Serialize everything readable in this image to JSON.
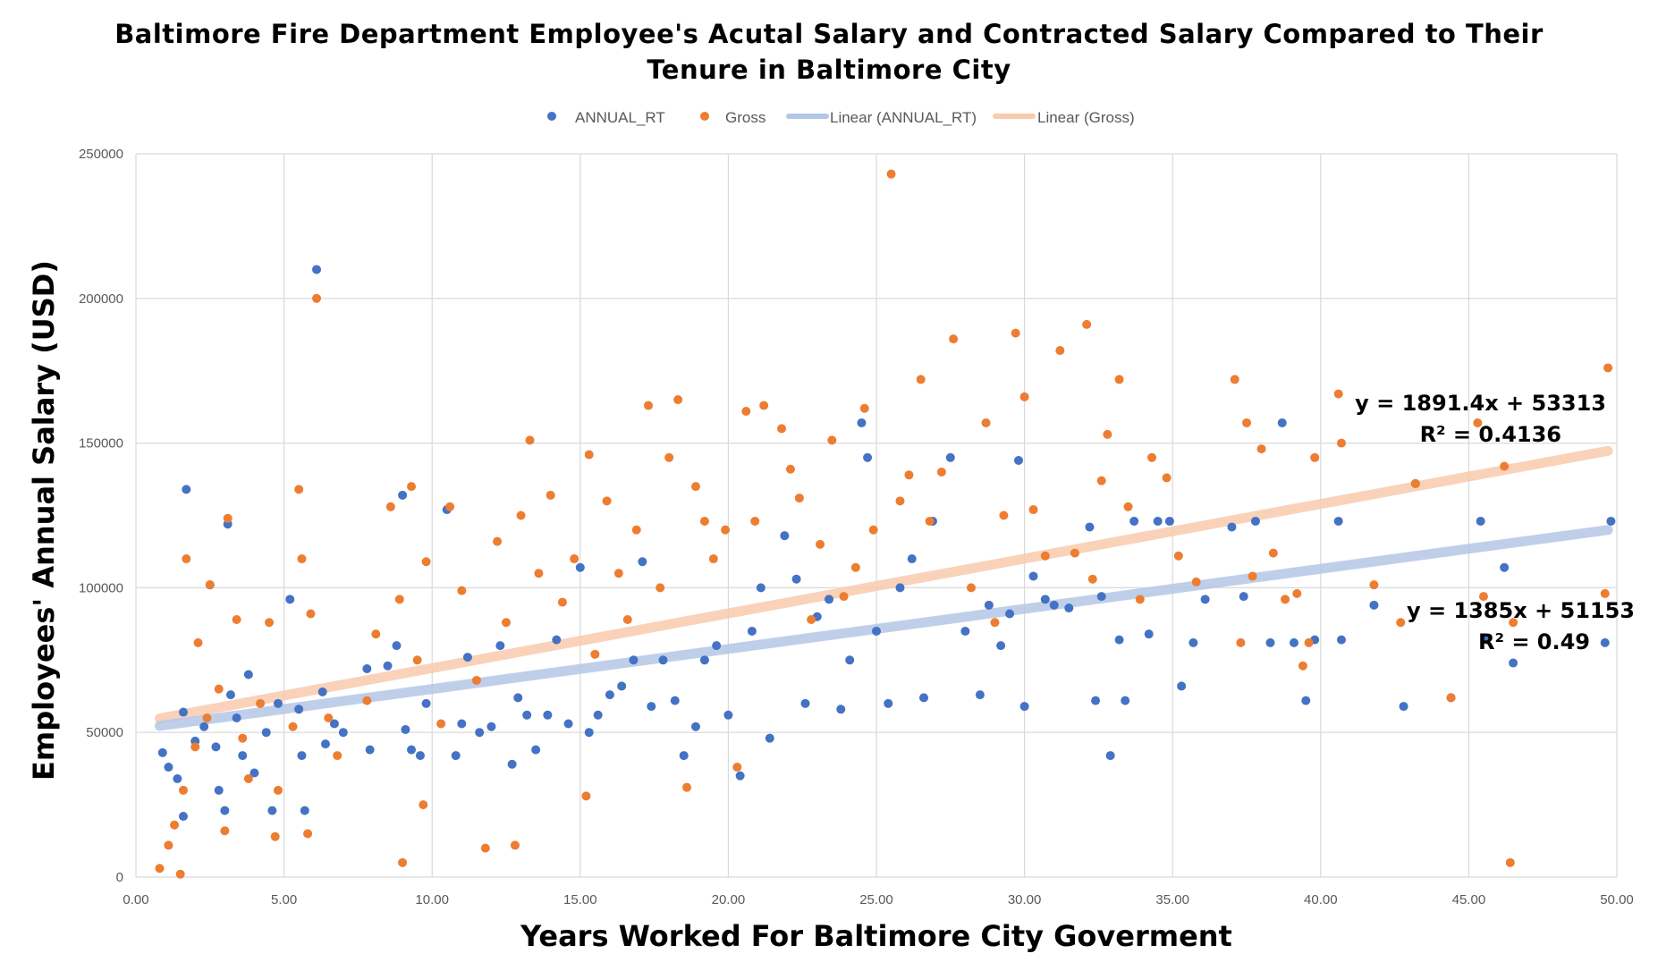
{
  "chart_data": {
    "type": "scatter",
    "title": "Baltimore Fire Department Employee's Acutal Salary and Contracted Salary Compared to Their",
    "title_line2": "Tenure in Baltimore City",
    "xlabel": "Years Worked For Baltimore City Goverment",
    "ylabel": "Employees' Annual Salary (USD)",
    "xlim": [
      0,
      50
    ],
    "ylim": [
      0,
      250000
    ],
    "x_ticks": [
      "0.00",
      "5.00",
      "10.00",
      "15.00",
      "20.00",
      "25.00",
      "30.00",
      "35.00",
      "40.00",
      "45.00",
      "50.00"
    ],
    "y_ticks": [
      "0",
      "50000",
      "100000",
      "150000",
      "200000",
      "250000"
    ],
    "grid": true,
    "legend_position": "top",
    "legend": [
      {
        "label": "ANNUAL_RT",
        "kind": "marker",
        "color": "#4472C4"
      },
      {
        "label": "Gross",
        "kind": "marker",
        "color": "#ED7D31"
      },
      {
        "label": "Linear (ANNUAL_RT)",
        "kind": "line",
        "color": "#B4C7E7"
      },
      {
        "label": "Linear (Gross)",
        "kind": "line",
        "color": "#F8CBAD"
      }
    ],
    "trendlines": [
      {
        "series": "Gross",
        "slope": 1891.4,
        "intercept": 53313,
        "x_range": [
          0.8,
          49.7
        ],
        "color": "#F8CBAD",
        "equation": "y = 1891.4x + 53313",
        "r2": "R² = 0.4136"
      },
      {
        "series": "ANNUAL_RT",
        "slope": 1385,
        "intercept": 51153,
        "x_range": [
          0.8,
          49.7
        ],
        "color": "#B4C7E7",
        "equation": "y = 1385x + 51153",
        "r2": "R² = 0.49"
      }
    ],
    "series": [
      {
        "name": "ANNUAL_RT",
        "color": "#4472C4",
        "points": [
          [
            0.9,
            43000
          ],
          [
            1.1,
            38000
          ],
          [
            1.4,
            34000
          ],
          [
            1.6,
            57000
          ],
          [
            1.7,
            134000
          ],
          [
            1.6,
            21000
          ],
          [
            2.0,
            47000
          ],
          [
            2.3,
            52000
          ],
          [
            2.5,
            101000
          ],
          [
            2.7,
            45000
          ],
          [
            2.8,
            30000
          ],
          [
            3.0,
            23000
          ],
          [
            3.1,
            122000
          ],
          [
            3.2,
            63000
          ],
          [
            3.4,
            55000
          ],
          [
            3.6,
            42000
          ],
          [
            3.8,
            70000
          ],
          [
            4.0,
            36000
          ],
          [
            4.4,
            50000
          ],
          [
            4.6,
            23000
          ],
          [
            4.8,
            60000
          ],
          [
            5.2,
            96000
          ],
          [
            5.5,
            58000
          ],
          [
            5.6,
            42000
          ],
          [
            5.7,
            23000
          ],
          [
            6.1,
            210000
          ],
          [
            6.3,
            64000
          ],
          [
            6.4,
            46000
          ],
          [
            6.7,
            53000
          ],
          [
            7.0,
            50000
          ],
          [
            7.8,
            72000
          ],
          [
            7.9,
            44000
          ],
          [
            8.5,
            73000
          ],
          [
            8.8,
            80000
          ],
          [
            9.0,
            132000
          ],
          [
            9.1,
            51000
          ],
          [
            9.3,
            44000
          ],
          [
            9.6,
            42000
          ],
          [
            9.8,
            60000
          ],
          [
            10.5,
            127000
          ],
          [
            10.8,
            42000
          ],
          [
            11.0,
            53000
          ],
          [
            11.2,
            76000
          ],
          [
            11.6,
            50000
          ],
          [
            12.0,
            52000
          ],
          [
            12.3,
            80000
          ],
          [
            12.7,
            39000
          ],
          [
            12.9,
            62000
          ],
          [
            13.2,
            56000
          ],
          [
            13.5,
            44000
          ],
          [
            13.9,
            56000
          ],
          [
            14.2,
            82000
          ],
          [
            14.6,
            53000
          ],
          [
            15.0,
            107000
          ],
          [
            15.3,
            50000
          ],
          [
            15.6,
            56000
          ],
          [
            16.0,
            63000
          ],
          [
            16.4,
            66000
          ],
          [
            16.8,
            75000
          ],
          [
            17.1,
            109000
          ],
          [
            17.4,
            59000
          ],
          [
            17.8,
            75000
          ],
          [
            18.2,
            61000
          ],
          [
            18.5,
            42000
          ],
          [
            18.9,
            52000
          ],
          [
            19.2,
            75000
          ],
          [
            19.6,
            80000
          ],
          [
            20.0,
            56000
          ],
          [
            20.4,
            35000
          ],
          [
            20.8,
            85000
          ],
          [
            21.1,
            100000
          ],
          [
            21.4,
            48000
          ],
          [
            21.9,
            118000
          ],
          [
            22.3,
            103000
          ],
          [
            22.6,
            60000
          ],
          [
            23.0,
            90000
          ],
          [
            23.4,
            96000
          ],
          [
            23.8,
            58000
          ],
          [
            24.1,
            75000
          ],
          [
            24.5,
            157000
          ],
          [
            24.7,
            145000
          ],
          [
            25.0,
            85000
          ],
          [
            25.4,
            60000
          ],
          [
            25.8,
            100000
          ],
          [
            26.2,
            110000
          ],
          [
            26.6,
            62000
          ],
          [
            26.9,
            123000
          ],
          [
            27.5,
            145000
          ],
          [
            28.0,
            85000
          ],
          [
            28.5,
            63000
          ],
          [
            28.8,
            94000
          ],
          [
            29.2,
            80000
          ],
          [
            29.5,
            91000
          ],
          [
            29.8,
            144000
          ],
          [
            30.0,
            59000
          ],
          [
            30.3,
            104000
          ],
          [
            30.7,
            96000
          ],
          [
            31.0,
            94000
          ],
          [
            31.5,
            93000
          ],
          [
            32.2,
            121000
          ],
          [
            32.4,
            61000
          ],
          [
            32.6,
            97000
          ],
          [
            32.9,
            42000
          ],
          [
            33.2,
            82000
          ],
          [
            33.4,
            61000
          ],
          [
            33.7,
            123000
          ],
          [
            34.2,
            84000
          ],
          [
            34.5,
            123000
          ],
          [
            34.9,
            123000
          ],
          [
            35.3,
            66000
          ],
          [
            35.7,
            81000
          ],
          [
            36.1,
            96000
          ],
          [
            37.0,
            121000
          ],
          [
            37.4,
            97000
          ],
          [
            37.8,
            123000
          ],
          [
            38.3,
            81000
          ],
          [
            38.7,
            157000
          ],
          [
            39.1,
            81000
          ],
          [
            39.5,
            61000
          ],
          [
            39.8,
            82000
          ],
          [
            40.6,
            123000
          ],
          [
            40.7,
            82000
          ],
          [
            41.8,
            94000
          ],
          [
            42.8,
            59000
          ],
          [
            43.2,
            136000
          ],
          [
            44.4,
            62000
          ],
          [
            45.4,
            123000
          ],
          [
            45.6,
            82000
          ],
          [
            46.2,
            107000
          ],
          [
            46.5,
            74000
          ],
          [
            49.8,
            123000
          ],
          [
            49.6,
            81000
          ]
        ]
      },
      {
        "name": "Gross",
        "color": "#ED7D31",
        "points": [
          [
            0.8,
            3000
          ],
          [
            1.1,
            11000
          ],
          [
            1.3,
            18000
          ],
          [
            1.5,
            1000
          ],
          [
            1.6,
            30000
          ],
          [
            1.7,
            110000
          ],
          [
            2.0,
            45000
          ],
          [
            2.1,
            81000
          ],
          [
            2.4,
            55000
          ],
          [
            2.5,
            101000
          ],
          [
            2.8,
            65000
          ],
          [
            3.0,
            16000
          ],
          [
            3.1,
            124000
          ],
          [
            3.4,
            89000
          ],
          [
            3.6,
            48000
          ],
          [
            3.8,
            34000
          ],
          [
            4.2,
            60000
          ],
          [
            4.5,
            88000
          ],
          [
            4.7,
            14000
          ],
          [
            4.8,
            30000
          ],
          [
            5.3,
            52000
          ],
          [
            5.5,
            134000
          ],
          [
            5.6,
            110000
          ],
          [
            5.8,
            15000
          ],
          [
            5.9,
            91000
          ],
          [
            6.1,
            200000
          ],
          [
            6.5,
            55000
          ],
          [
            6.8,
            42000
          ],
          [
            7.8,
            61000
          ],
          [
            8.1,
            84000
          ],
          [
            8.6,
            128000
          ],
          [
            8.9,
            96000
          ],
          [
            9.0,
            5000
          ],
          [
            9.3,
            135000
          ],
          [
            9.5,
            75000
          ],
          [
            9.7,
            25000
          ],
          [
            9.8,
            109000
          ],
          [
            10.3,
            53000
          ],
          [
            10.6,
            128000
          ],
          [
            11.0,
            99000
          ],
          [
            11.5,
            68000
          ],
          [
            11.8,
            10000
          ],
          [
            12.2,
            116000
          ],
          [
            12.5,
            88000
          ],
          [
            12.8,
            11000
          ],
          [
            13.0,
            125000
          ],
          [
            13.3,
            151000
          ],
          [
            13.6,
            105000
          ],
          [
            14.0,
            132000
          ],
          [
            14.4,
            95000
          ],
          [
            14.8,
            110000
          ],
          [
            15.2,
            28000
          ],
          [
            15.3,
            146000
          ],
          [
            15.5,
            77000
          ],
          [
            15.9,
            130000
          ],
          [
            16.3,
            105000
          ],
          [
            16.6,
            89000
          ],
          [
            16.9,
            120000
          ],
          [
            17.3,
            163000
          ],
          [
            17.7,
            100000
          ],
          [
            18.0,
            145000
          ],
          [
            18.3,
            165000
          ],
          [
            18.6,
            31000
          ],
          [
            18.9,
            135000
          ],
          [
            19.2,
            123000
          ],
          [
            19.5,
            110000
          ],
          [
            19.9,
            120000
          ],
          [
            20.3,
            38000
          ],
          [
            20.6,
            161000
          ],
          [
            20.9,
            123000
          ],
          [
            21.2,
            163000
          ],
          [
            21.8,
            155000
          ],
          [
            22.1,
            141000
          ],
          [
            22.4,
            131000
          ],
          [
            22.8,
            89000
          ],
          [
            23.1,
            115000
          ],
          [
            23.5,
            151000
          ],
          [
            23.9,
            97000
          ],
          [
            24.3,
            107000
          ],
          [
            24.6,
            162000
          ],
          [
            24.9,
            120000
          ],
          [
            25.5,
            243000
          ],
          [
            25.8,
            130000
          ],
          [
            26.1,
            139000
          ],
          [
            26.5,
            172000
          ],
          [
            26.8,
            123000
          ],
          [
            27.2,
            140000
          ],
          [
            27.6,
            186000
          ],
          [
            28.2,
            100000
          ],
          [
            28.7,
            157000
          ],
          [
            29.0,
            88000
          ],
          [
            29.3,
            125000
          ],
          [
            29.7,
            188000
          ],
          [
            30.0,
            166000
          ],
          [
            30.3,
            127000
          ],
          [
            30.7,
            111000
          ],
          [
            31.2,
            182000
          ],
          [
            31.7,
            112000
          ],
          [
            32.1,
            191000
          ],
          [
            32.3,
            103000
          ],
          [
            32.6,
            137000
          ],
          [
            32.8,
            153000
          ],
          [
            33.2,
            172000
          ],
          [
            33.5,
            128000
          ],
          [
            33.9,
            96000
          ],
          [
            34.3,
            145000
          ],
          [
            34.8,
            138000
          ],
          [
            35.2,
            111000
          ],
          [
            35.8,
            102000
          ],
          [
            37.1,
            172000
          ],
          [
            37.3,
            81000
          ],
          [
            37.5,
            157000
          ],
          [
            37.7,
            104000
          ],
          [
            38.0,
            148000
          ],
          [
            38.4,
            112000
          ],
          [
            38.8,
            96000
          ],
          [
            39.2,
            98000
          ],
          [
            39.4,
            73000
          ],
          [
            39.6,
            81000
          ],
          [
            39.8,
            145000
          ],
          [
            40.6,
            167000
          ],
          [
            40.7,
            150000
          ],
          [
            41.8,
            101000
          ],
          [
            42.7,
            88000
          ],
          [
            43.2,
            136000
          ],
          [
            44.4,
            62000
          ],
          [
            45.3,
            157000
          ],
          [
            45.5,
            97000
          ],
          [
            46.2,
            142000
          ],
          [
            46.4,
            5000
          ],
          [
            46.5,
            88000
          ],
          [
            49.6,
            98000
          ],
          [
            49.7,
            176000
          ]
        ]
      }
    ]
  }
}
